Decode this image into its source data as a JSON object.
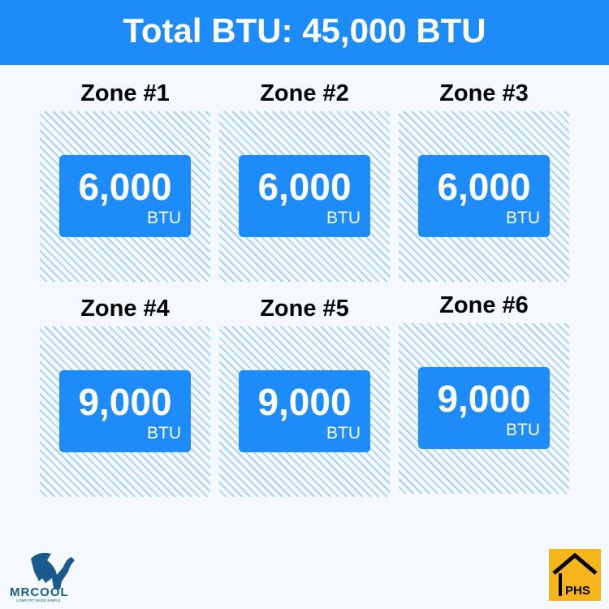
{
  "header": {
    "title": "Total BTU: 45,000 BTU"
  },
  "zones": [
    {
      "label": "Zone #1",
      "value": "6,000",
      "unit": "BTU"
    },
    {
      "label": "Zone #2",
      "value": "6,000",
      "unit": "BTU"
    },
    {
      "label": "Zone #3",
      "value": "6,000",
      "unit": "BTU"
    },
    {
      "label": "Zone #4",
      "value": "9,000",
      "unit": "BTU"
    },
    {
      "label": "Zone #5",
      "value": "9,000",
      "unit": "BTU"
    },
    {
      "label": "Zone #6",
      "value": "9,000",
      "unit": "BTU"
    }
  ],
  "logos": {
    "left": "MRCOOL",
    "left_tagline": "COMFORT MADE SIMPLE",
    "right": "PHS"
  },
  "colors": {
    "accent": "#1e8cf8",
    "stripe": "#a9d1f6",
    "background": "#f4faff",
    "phs_yellow": "#f7b51c"
  }
}
